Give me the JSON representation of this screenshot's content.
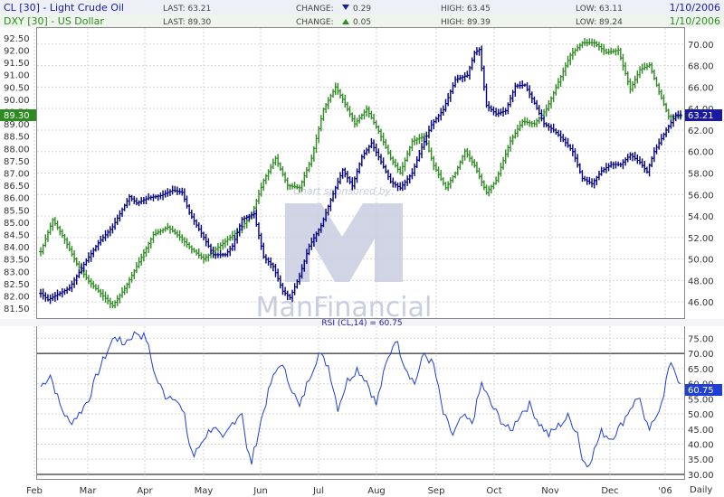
{
  "header": {
    "row1": {
      "symbol_label": "CL [30] - Light Crude Oil",
      "last": "LAST: 63.21",
      "change_label": "CHANGE:",
      "change_value": "0.29",
      "high": "HIGH: 63.45",
      "low": "LOW: 63.11",
      "date": "1/10/2006"
    },
    "row2": {
      "symbol_label": "DXY [30] - US Dollar",
      "last": "LAST: 89.30",
      "change_label": "CHANGE:",
      "change_value": "0.05",
      "high": "HIGH: 89.39",
      "low": "LOW: 89.24",
      "date": "1/10/2006"
    }
  },
  "colors": {
    "crude": "#000080",
    "dollar": "#2e8b22",
    "rsi": "#1f3fd6",
    "header_blue": "#1a1aa0",
    "header_green": "#2e8b22",
    "watermark": "#c8cde0",
    "grid": "#d6d6d6"
  },
  "watermark": {
    "sponsor": "Chart sponsored by:",
    "brand": "ManFinancial"
  },
  "rsi_title": "RSI (CL,14) = 60.75",
  "right_labels": {
    "crude_last": "63.21",
    "rsi_last": "60.75"
  },
  "left_labels": {
    "dollar_last": "89.30"
  },
  "bottom_right_label": "Daily",
  "chart_data": [
    {
      "type": "bar",
      "title": "CL [30] - Light Crude Oil",
      "axis": "right",
      "ylim": [
        44.5,
        71.5
      ],
      "ticks": [
        "70.00",
        "68.00",
        "66.00",
        "64.00",
        "62.00",
        "60.00",
        "58.00",
        "56.00",
        "54.00",
        "52.00",
        "50.00",
        "48.00",
        "46.00"
      ],
      "x_categories": [
        "Feb",
        "Mar",
        "Apr",
        "May",
        "Jun",
        "Jul",
        "Aug",
        "Sep",
        "Oct",
        "Nov",
        "Dec",
        "'06"
      ],
      "anchors": [
        [
          0,
          46.8
        ],
        [
          3,
          46.2
        ],
        [
          7,
          46.7
        ],
        [
          12,
          47.3
        ],
        [
          18,
          49.5
        ],
        [
          24,
          51.5
        ],
        [
          30,
          53.0
        ],
        [
          37,
          55.8
        ],
        [
          40,
          55.2
        ],
        [
          45,
          55.7
        ],
        [
          50,
          55.9
        ],
        [
          55,
          56.4
        ],
        [
          59,
          56.2
        ],
        [
          62,
          54.3
        ],
        [
          67,
          52.4
        ],
        [
          72,
          50.4
        ],
        [
          77,
          50.4
        ],
        [
          80,
          51.2
        ],
        [
          84,
          53.7
        ],
        [
          89,
          54.2
        ],
        [
          93,
          50.2
        ],
        [
          97,
          49.3
        ],
        [
          101,
          47.0
        ],
        [
          104,
          46.4
        ],
        [
          108,
          48.4
        ],
        [
          112,
          51.2
        ],
        [
          117,
          53.1
        ],
        [
          121,
          55.5
        ],
        [
          126,
          58.3
        ],
        [
          130,
          56.8
        ],
        [
          134,
          59.5
        ],
        [
          138,
          60.8
        ],
        [
          141,
          59.5
        ],
        [
          146,
          57.2
        ],
        [
          150,
          56.6
        ],
        [
          155,
          58.0
        ],
        [
          159,
          60.4
        ],
        [
          163,
          62.5
        ],
        [
          168,
          63.9
        ],
        [
          173,
          66.7
        ],
        [
          178,
          67.1
        ],
        [
          181,
          69.2
        ],
        [
          183,
          69.5
        ],
        [
          186,
          64.3
        ],
        [
          190,
          63.5
        ],
        [
          194,
          63.8
        ],
        [
          198,
          66.1
        ],
        [
          202,
          66.2
        ],
        [
          206,
          64.5
        ],
        [
          210,
          62.6
        ],
        [
          214,
          62.0
        ],
        [
          218,
          61.1
        ],
        [
          222,
          60.0
        ],
        [
          226,
          57.5
        ],
        [
          230,
          57.0
        ],
        [
          234,
          58.2
        ],
        [
          238,
          58.8
        ],
        [
          242,
          58.8
        ],
        [
          246,
          59.7
        ],
        [
          250,
          59.0
        ],
        [
          253,
          58.1
        ],
        [
          256,
          60.0
        ],
        [
          261,
          62.0
        ],
        [
          265,
          63.4
        ],
        [
          267,
          63.4
        ]
      ]
    },
    {
      "type": "bar",
      "title": "DXY [30] - US Dollar",
      "axis": "left",
      "ylim": [
        81.1,
        92.9
      ],
      "ticks": [
        "92.50",
        "92.00",
        "91.50",
        "91.00",
        "90.50",
        "90.00",
        "89.50",
        "89.00",
        "88.50",
        "88.00",
        "87.50",
        "87.00",
        "86.50",
        "86.00",
        "85.50",
        "85.00",
        "84.50",
        "84.00",
        "83.50",
        "83.00",
        "82.50",
        "82.00",
        "81.50"
      ],
      "anchors": [
        [
          0,
          83.8
        ],
        [
          5,
          85.1
        ],
        [
          10,
          84.3
        ],
        [
          15,
          83.3
        ],
        [
          20,
          82.6
        ],
        [
          25,
          82.1
        ],
        [
          30,
          81.6
        ],
        [
          35,
          82.3
        ],
        [
          40,
          83.2
        ],
        [
          47,
          84.5
        ],
        [
          53,
          84.8
        ],
        [
          58,
          84.4
        ],
        [
          63,
          83.9
        ],
        [
          68,
          83.5
        ],
        [
          73,
          83.9
        ],
        [
          78,
          84.3
        ],
        [
          83,
          84.7
        ],
        [
          88,
          85.3
        ],
        [
          93,
          86.7
        ],
        [
          98,
          87.6
        ],
        [
          103,
          86.5
        ],
        [
          108,
          86.4
        ],
        [
          113,
          87.6
        ],
        [
          118,
          89.6
        ],
        [
          123,
          90.5
        ],
        [
          126,
          90.0
        ],
        [
          131,
          89.0
        ],
        [
          136,
          89.6
        ],
        [
          141,
          88.7
        ],
        [
          146,
          87.6
        ],
        [
          150,
          87.0
        ],
        [
          155,
          88.3
        ],
        [
          160,
          88.5
        ],
        [
          164,
          87.3
        ],
        [
          169,
          86.4
        ],
        [
          173,
          87.0
        ],
        [
          177,
          87.9
        ],
        [
          181,
          87.3
        ],
        [
          186,
          86.2
        ],
        [
          190,
          86.7
        ],
        [
          196,
          88.3
        ],
        [
          201,
          89.1
        ],
        [
          206,
          89.0
        ],
        [
          211,
          89.6
        ],
        [
          216,
          90.7
        ],
        [
          221,
          91.8
        ],
        [
          226,
          92.3
        ],
        [
          231,
          92.3
        ],
        [
          236,
          91.9
        ],
        [
          241,
          92.0
        ],
        [
          246,
          90.4
        ],
        [
          250,
          91.2
        ],
        [
          254,
          91.4
        ],
        [
          258,
          90.3
        ],
        [
          262,
          89.3
        ],
        [
          266,
          89.3
        ]
      ]
    },
    {
      "type": "line",
      "title": "RSI (CL,14) = 60.75",
      "ylim": [
        28.5,
        79.0
      ],
      "ticks": [
        "75.00",
        "70.00",
        "65.00",
        "60.00",
        "55.00",
        "50.00",
        "45.00",
        "40.00",
        "35.00",
        "30.00"
      ],
      "reference_lines": [
        70,
        30
      ],
      "anchors": [
        [
          0,
          59.0
        ],
        [
          4,
          63.0
        ],
        [
          8,
          53.0
        ],
        [
          12,
          47.0
        ],
        [
          16,
          50.0
        ],
        [
          20,
          55.0
        ],
        [
          24,
          64.0
        ],
        [
          28,
          71.0
        ],
        [
          31,
          76.0
        ],
        [
          34,
          73.0
        ],
        [
          37,
          75.0
        ],
        [
          40,
          77.0
        ],
        [
          44,
          75.0
        ],
        [
          48,
          62.0
        ],
        [
          52,
          56.0
        ],
        [
          56,
          56.0
        ],
        [
          60,
          49.0
        ],
        [
          62,
          40.0
        ],
        [
          64,
          36.0
        ],
        [
          68,
          42.0
        ],
        [
          72,
          46.0
        ],
        [
          76,
          41.0
        ],
        [
          80,
          47.0
        ],
        [
          84,
          51.0
        ],
        [
          86,
          38.0
        ],
        [
          88,
          34.0
        ],
        [
          92,
          48.0
        ],
        [
          96,
          60.0
        ],
        [
          100,
          67.0
        ],
        [
          104,
          60.0
        ],
        [
          108,
          52.0
        ],
        [
          112,
          62.0
        ],
        [
          116,
          70.0
        ],
        [
          120,
          66.0
        ],
        [
          124,
          52.0
        ],
        [
          128,
          61.0
        ],
        [
          132,
          65.0
        ],
        [
          136,
          61.0
        ],
        [
          140,
          53.0
        ],
        [
          144,
          66.0
        ],
        [
          148,
          75.0
        ],
        [
          152,
          66.0
        ],
        [
          156,
          60.0
        ],
        [
          160,
          70.0
        ],
        [
          164,
          66.0
        ],
        [
          168,
          50.0
        ],
        [
          172,
          43.0
        ],
        [
          176,
          49.0
        ],
        [
          180,
          47.0
        ],
        [
          184,
          60.0
        ],
        [
          188,
          53.0
        ],
        [
          192,
          48.0
        ],
        [
          196,
          44.0
        ],
        [
          200,
          50.0
        ],
        [
          204,
          53.0
        ],
        [
          208,
          47.0
        ],
        [
          212,
          43.0
        ],
        [
          216,
          46.0
        ],
        [
          220,
          49.0
        ],
        [
          224,
          44.0
        ],
        [
          226,
          35.0
        ],
        [
          228,
          33.0
        ],
        [
          230,
          36.0
        ],
        [
          234,
          44.0
        ],
        [
          238,
          42.0
        ],
        [
          242,
          46.0
        ],
        [
          246,
          52.0
        ],
        [
          250,
          56.0
        ],
        [
          252,
          47.0
        ],
        [
          254,
          45.0
        ],
        [
          256,
          47.0
        ],
        [
          260,
          57.0
        ],
        [
          262,
          65.0
        ],
        [
          264,
          66.0
        ],
        [
          266,
          61.0
        ]
      ]
    }
  ]
}
